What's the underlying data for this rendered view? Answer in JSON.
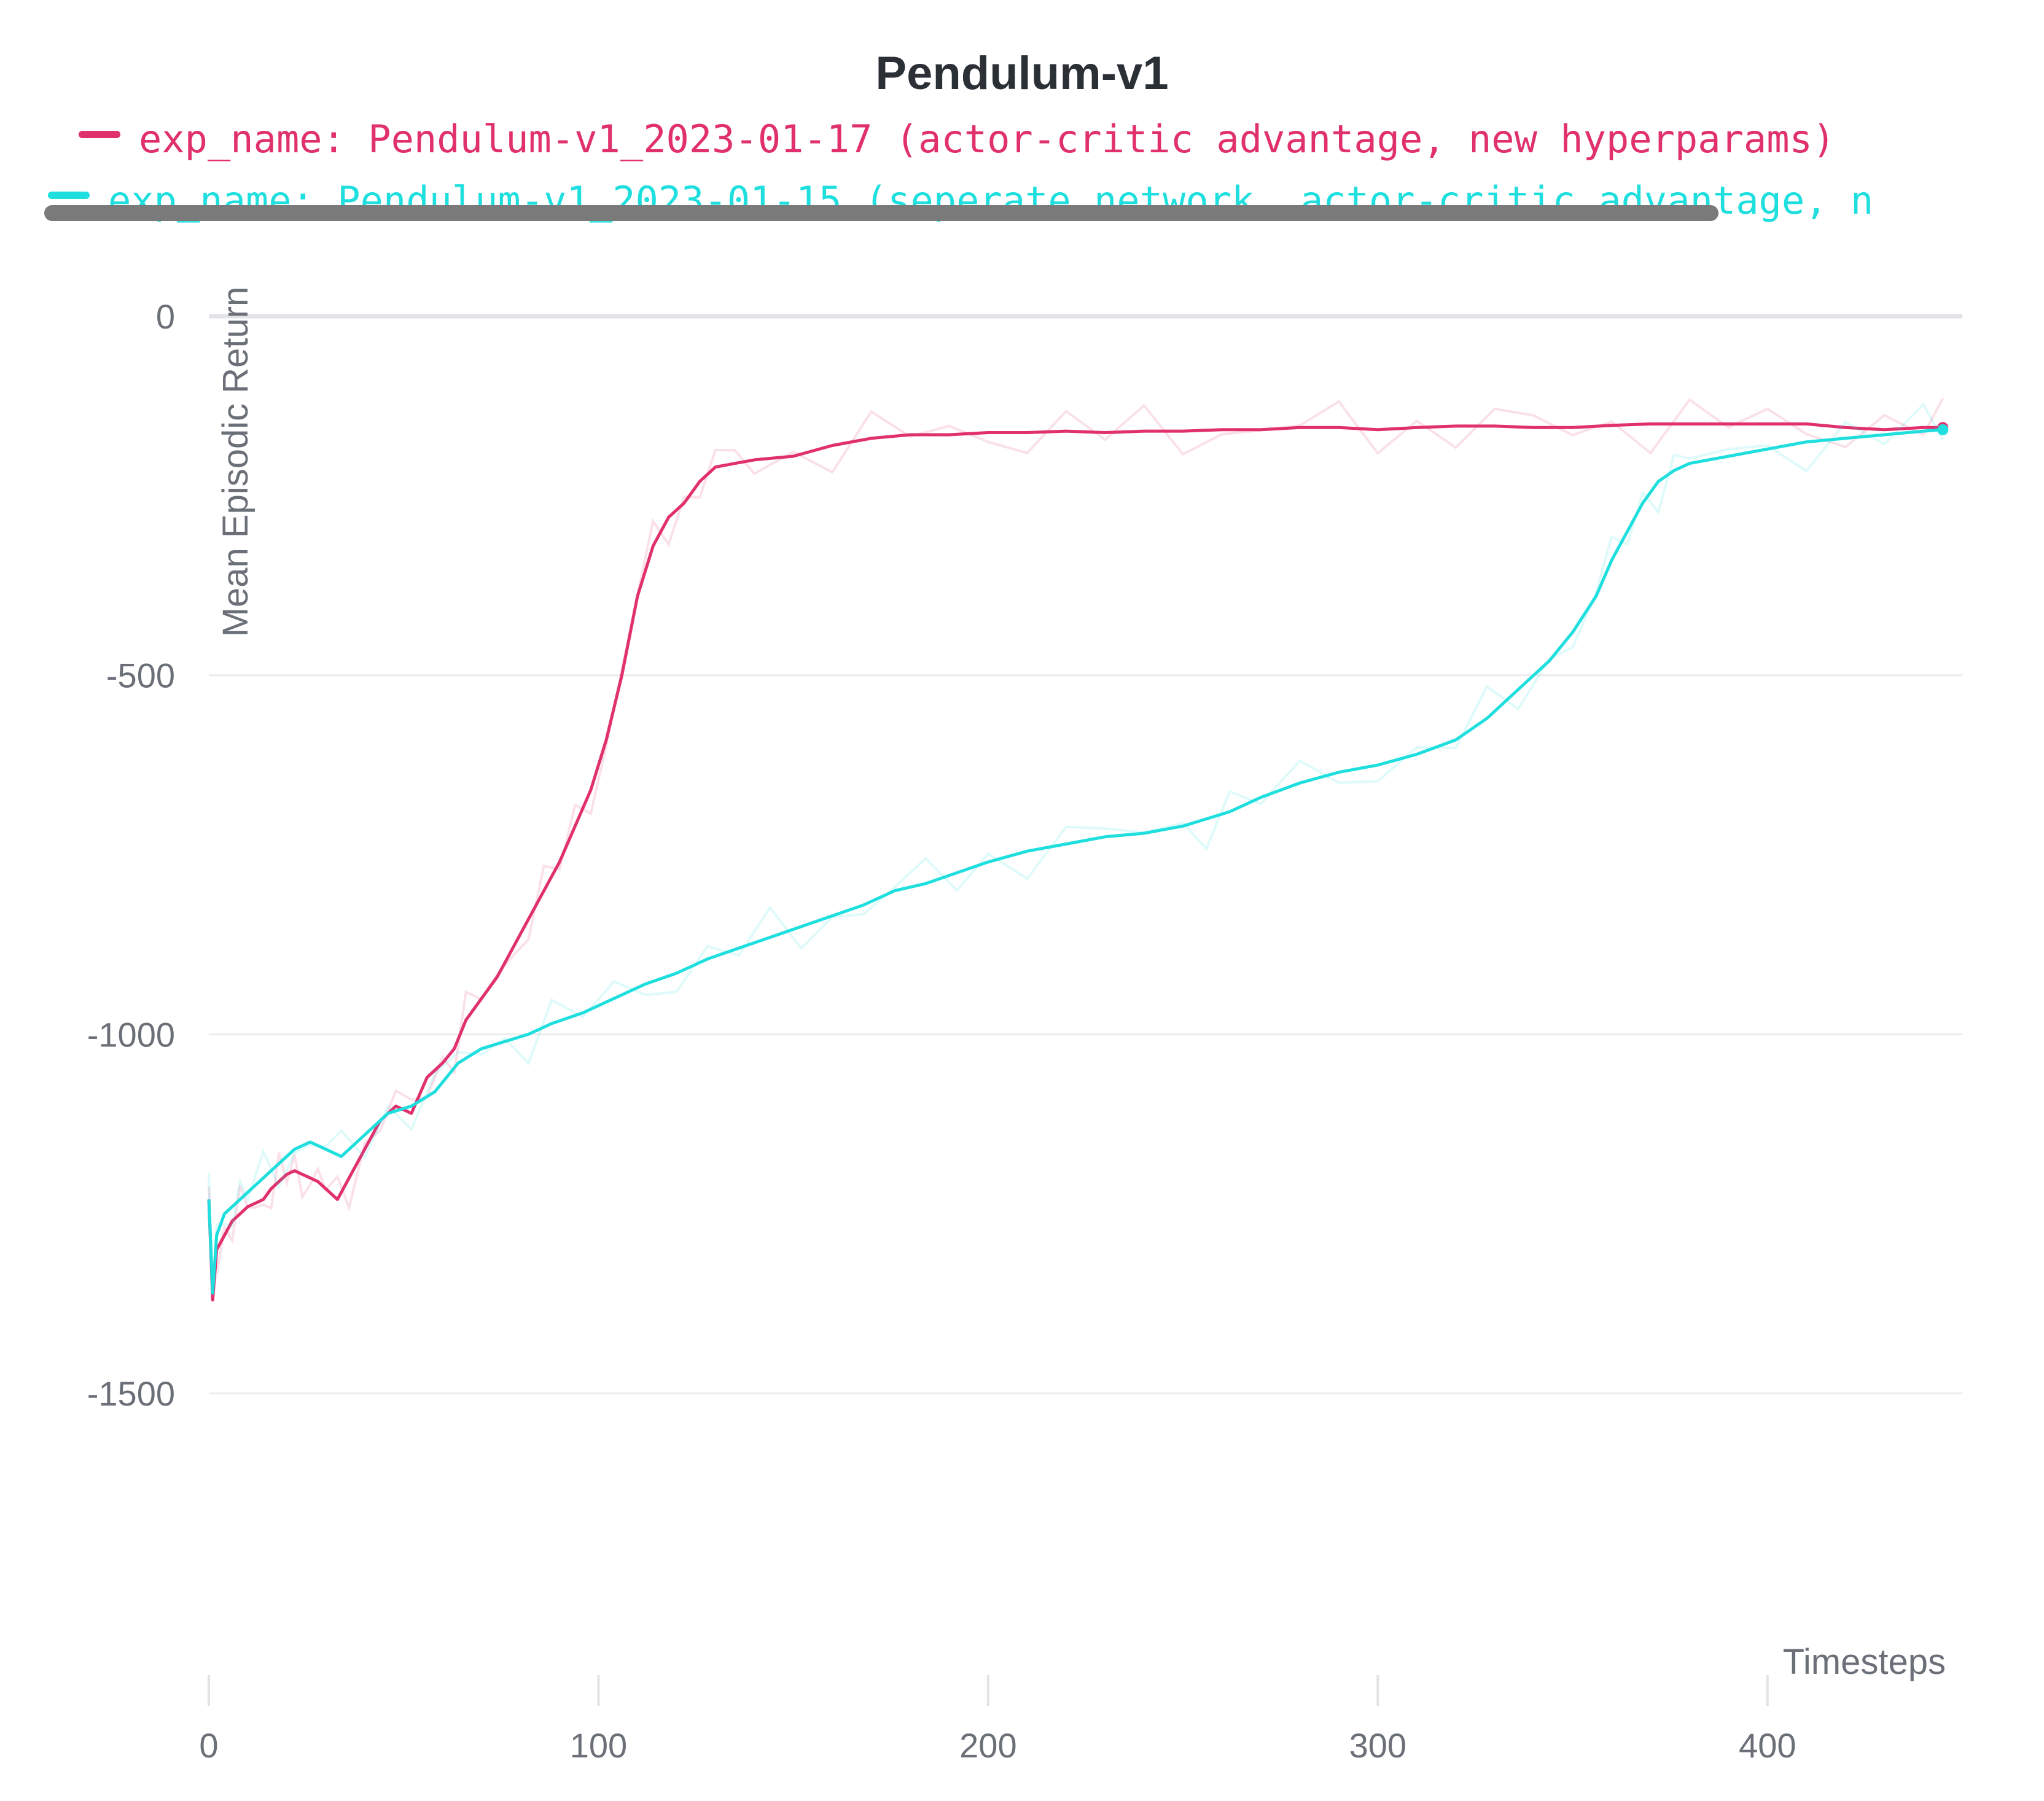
{
  "chart_data": {
    "type": "line",
    "title": "Pendulum-v1",
    "xlabel": "Timesteps",
    "ylabel": "Mean Episodic Return",
    "xlim": [
      0,
      450
    ],
    "ylim": [
      -1800,
      0
    ],
    "xticks": [
      "0",
      "100",
      "200",
      "300",
      "400"
    ],
    "yticks": [
      "0",
      "-500",
      "-1000",
      "-1500"
    ],
    "legend_position": "top",
    "grid": true,
    "series": [
      {
        "name": "exp_name: Pendulum-v1_2023-01-17 (actor-critic advantage, new hyperparams)",
        "color": "#e0306e",
        "x": [
          0,
          1,
          2,
          4,
          6,
          8,
          10,
          12,
          14,
          16,
          18,
          20,
          22,
          24,
          26,
          28,
          30,
          33,
          36,
          40,
          44,
          48,
          52,
          56,
          60,
          63,
          66,
          70,
          74,
          78,
          82,
          86,
          90,
          94,
          98,
          102,
          106,
          110,
          114,
          118,
          122,
          126,
          130,
          135,
          140,
          150,
          160,
          170,
          180,
          190,
          200,
          210,
          220,
          230,
          240,
          250,
          260,
          270,
          280,
          290,
          300,
          310,
          320,
          330,
          340,
          350,
          360,
          370,
          380,
          390,
          400,
          410,
          420,
          430,
          440,
          445
        ],
        "y": [
          -1230,
          -1370,
          -1300,
          -1280,
          -1260,
          -1250,
          -1240,
          -1235,
          -1230,
          -1215,
          -1205,
          -1195,
          -1190,
          -1195,
          -1200,
          -1205,
          -1215,
          -1230,
          -1200,
          -1160,
          -1120,
          -1100,
          -1110,
          -1060,
          -1040,
          -1020,
          -980,
          -950,
          -920,
          -880,
          -840,
          -800,
          -760,
          -710,
          -660,
          -590,
          -500,
          -390,
          -320,
          -280,
          -260,
          -230,
          -210,
          -205,
          -200,
          -195,
          -180,
          -170,
          -165,
          -165,
          -162,
          -162,
          -160,
          -162,
          -160,
          -160,
          -158,
          -158,
          -155,
          -155,
          -158,
          -155,
          -153,
          -153,
          -155,
          -155,
          -152,
          -150,
          -150,
          -150,
          -150,
          -150,
          -155,
          -158,
          -155,
          -155
        ]
      },
      {
        "name": "exp_name: Pendulum-v1_2023-01-15 (seperate network, actor-critic advantage, n",
        "color": "#1fdede",
        "x": [
          0,
          1,
          2,
          4,
          6,
          8,
          10,
          14,
          18,
          22,
          26,
          30,
          34,
          40,
          46,
          52,
          58,
          64,
          70,
          76,
          82,
          88,
          96,
          104,
          112,
          120,
          128,
          136,
          144,
          152,
          160,
          168,
          176,
          184,
          192,
          200,
          210,
          220,
          230,
          240,
          250,
          256,
          262,
          270,
          280,
          290,
          300,
          310,
          320,
          328,
          336,
          344,
          350,
          356,
          360,
          364,
          368,
          372,
          376,
          380,
          390,
          400,
          410,
          420,
          430,
          440,
          445
        ],
        "y": [
          -1230,
          -1360,
          -1280,
          -1250,
          -1240,
          -1230,
          -1220,
          -1200,
          -1180,
          -1160,
          -1150,
          -1160,
          -1170,
          -1140,
          -1110,
          -1100,
          -1080,
          -1040,
          -1020,
          -1010,
          -1000,
          -985,
          -970,
          -950,
          -930,
          -915,
          -895,
          -880,
          -865,
          -850,
          -835,
          -820,
          -800,
          -790,
          -775,
          -760,
          -745,
          -735,
          -725,
          -720,
          -710,
          -700,
          -690,
          -670,
          -650,
          -635,
          -625,
          -610,
          -590,
          -560,
          -520,
          -480,
          -440,
          -390,
          -340,
          -300,
          -260,
          -230,
          -215,
          -205,
          -195,
          -185,
          -175,
          -170,
          -165,
          -160,
          -158
        ]
      }
    ]
  }
}
